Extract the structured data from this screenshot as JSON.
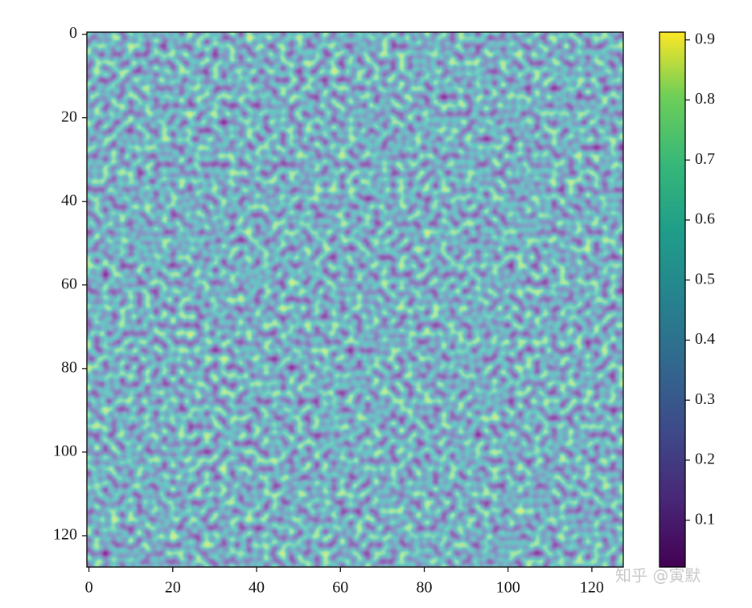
{
  "chart_data": {
    "type": "heatmap",
    "colormap": "viridis",
    "xlim": [
      -0.5,
      127.5
    ],
    "ylim": [
      127.5,
      -0.5
    ],
    "xticks": [
      0,
      20,
      40,
      60,
      80,
      100,
      120
    ],
    "yticks": [
      0,
      20,
      40,
      60,
      80,
      100,
      120
    ],
    "clim": [
      0.022,
      0.913
    ],
    "cticks": [
      0.1,
      0.2,
      0.3,
      0.4,
      0.5,
      0.6,
      0.7,
      0.8,
      0.9
    ]
  },
  "watermark": "知乎 @寅默"
}
